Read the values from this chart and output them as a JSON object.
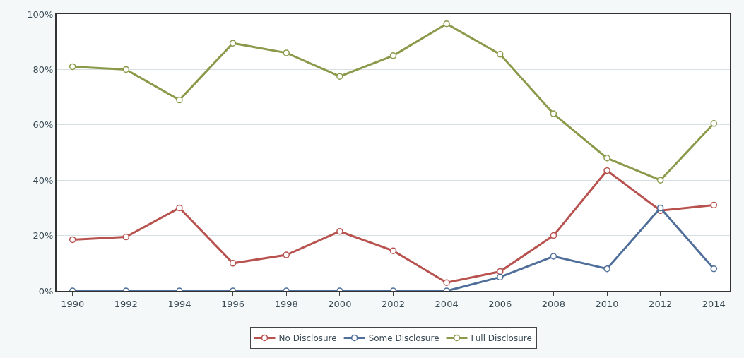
{
  "chart_data": {
    "type": "line",
    "categories": [
      "1990",
      "1992",
      "1994",
      "1996",
      "1998",
      "2000",
      "2002",
      "2004",
      "2006",
      "2008",
      "2010",
      "2012",
      "2014"
    ],
    "series": [
      {
        "name": "No Disclosure",
        "color": "#b8524f",
        "values": [
          18.5,
          19.5,
          30,
          10,
          13,
          21.5,
          14.5,
          3,
          7,
          20,
          43.5,
          29,
          31
        ]
      },
      {
        "name": "Some Disclosure",
        "color": "#4f6f9a",
        "values": [
          0,
          0,
          0,
          0,
          0,
          0,
          0,
          0,
          5,
          12.5,
          8,
          30,
          8
        ]
      },
      {
        "name": "Full Disclosure",
        "color": "#8a9a4a",
        "values": [
          81,
          80,
          69,
          89.5,
          86,
          77.5,
          85,
          96.5,
          85.5,
          64,
          48,
          40,
          60.5
        ]
      }
    ],
    "ylim": [
      0,
      100
    ],
    "yticks": [
      {
        "value": 0,
        "label": "0%"
      },
      {
        "value": 20,
        "label": "20%"
      },
      {
        "value": 40,
        "label": "40%"
      },
      {
        "value": 60,
        "label": "60%"
      },
      {
        "value": 80,
        "label": "80%"
      },
      {
        "value": 100,
        "label": "100%"
      }
    ],
    "grid": "y",
    "legend": "bottom",
    "marker": "circle",
    "line_style": "solid"
  }
}
